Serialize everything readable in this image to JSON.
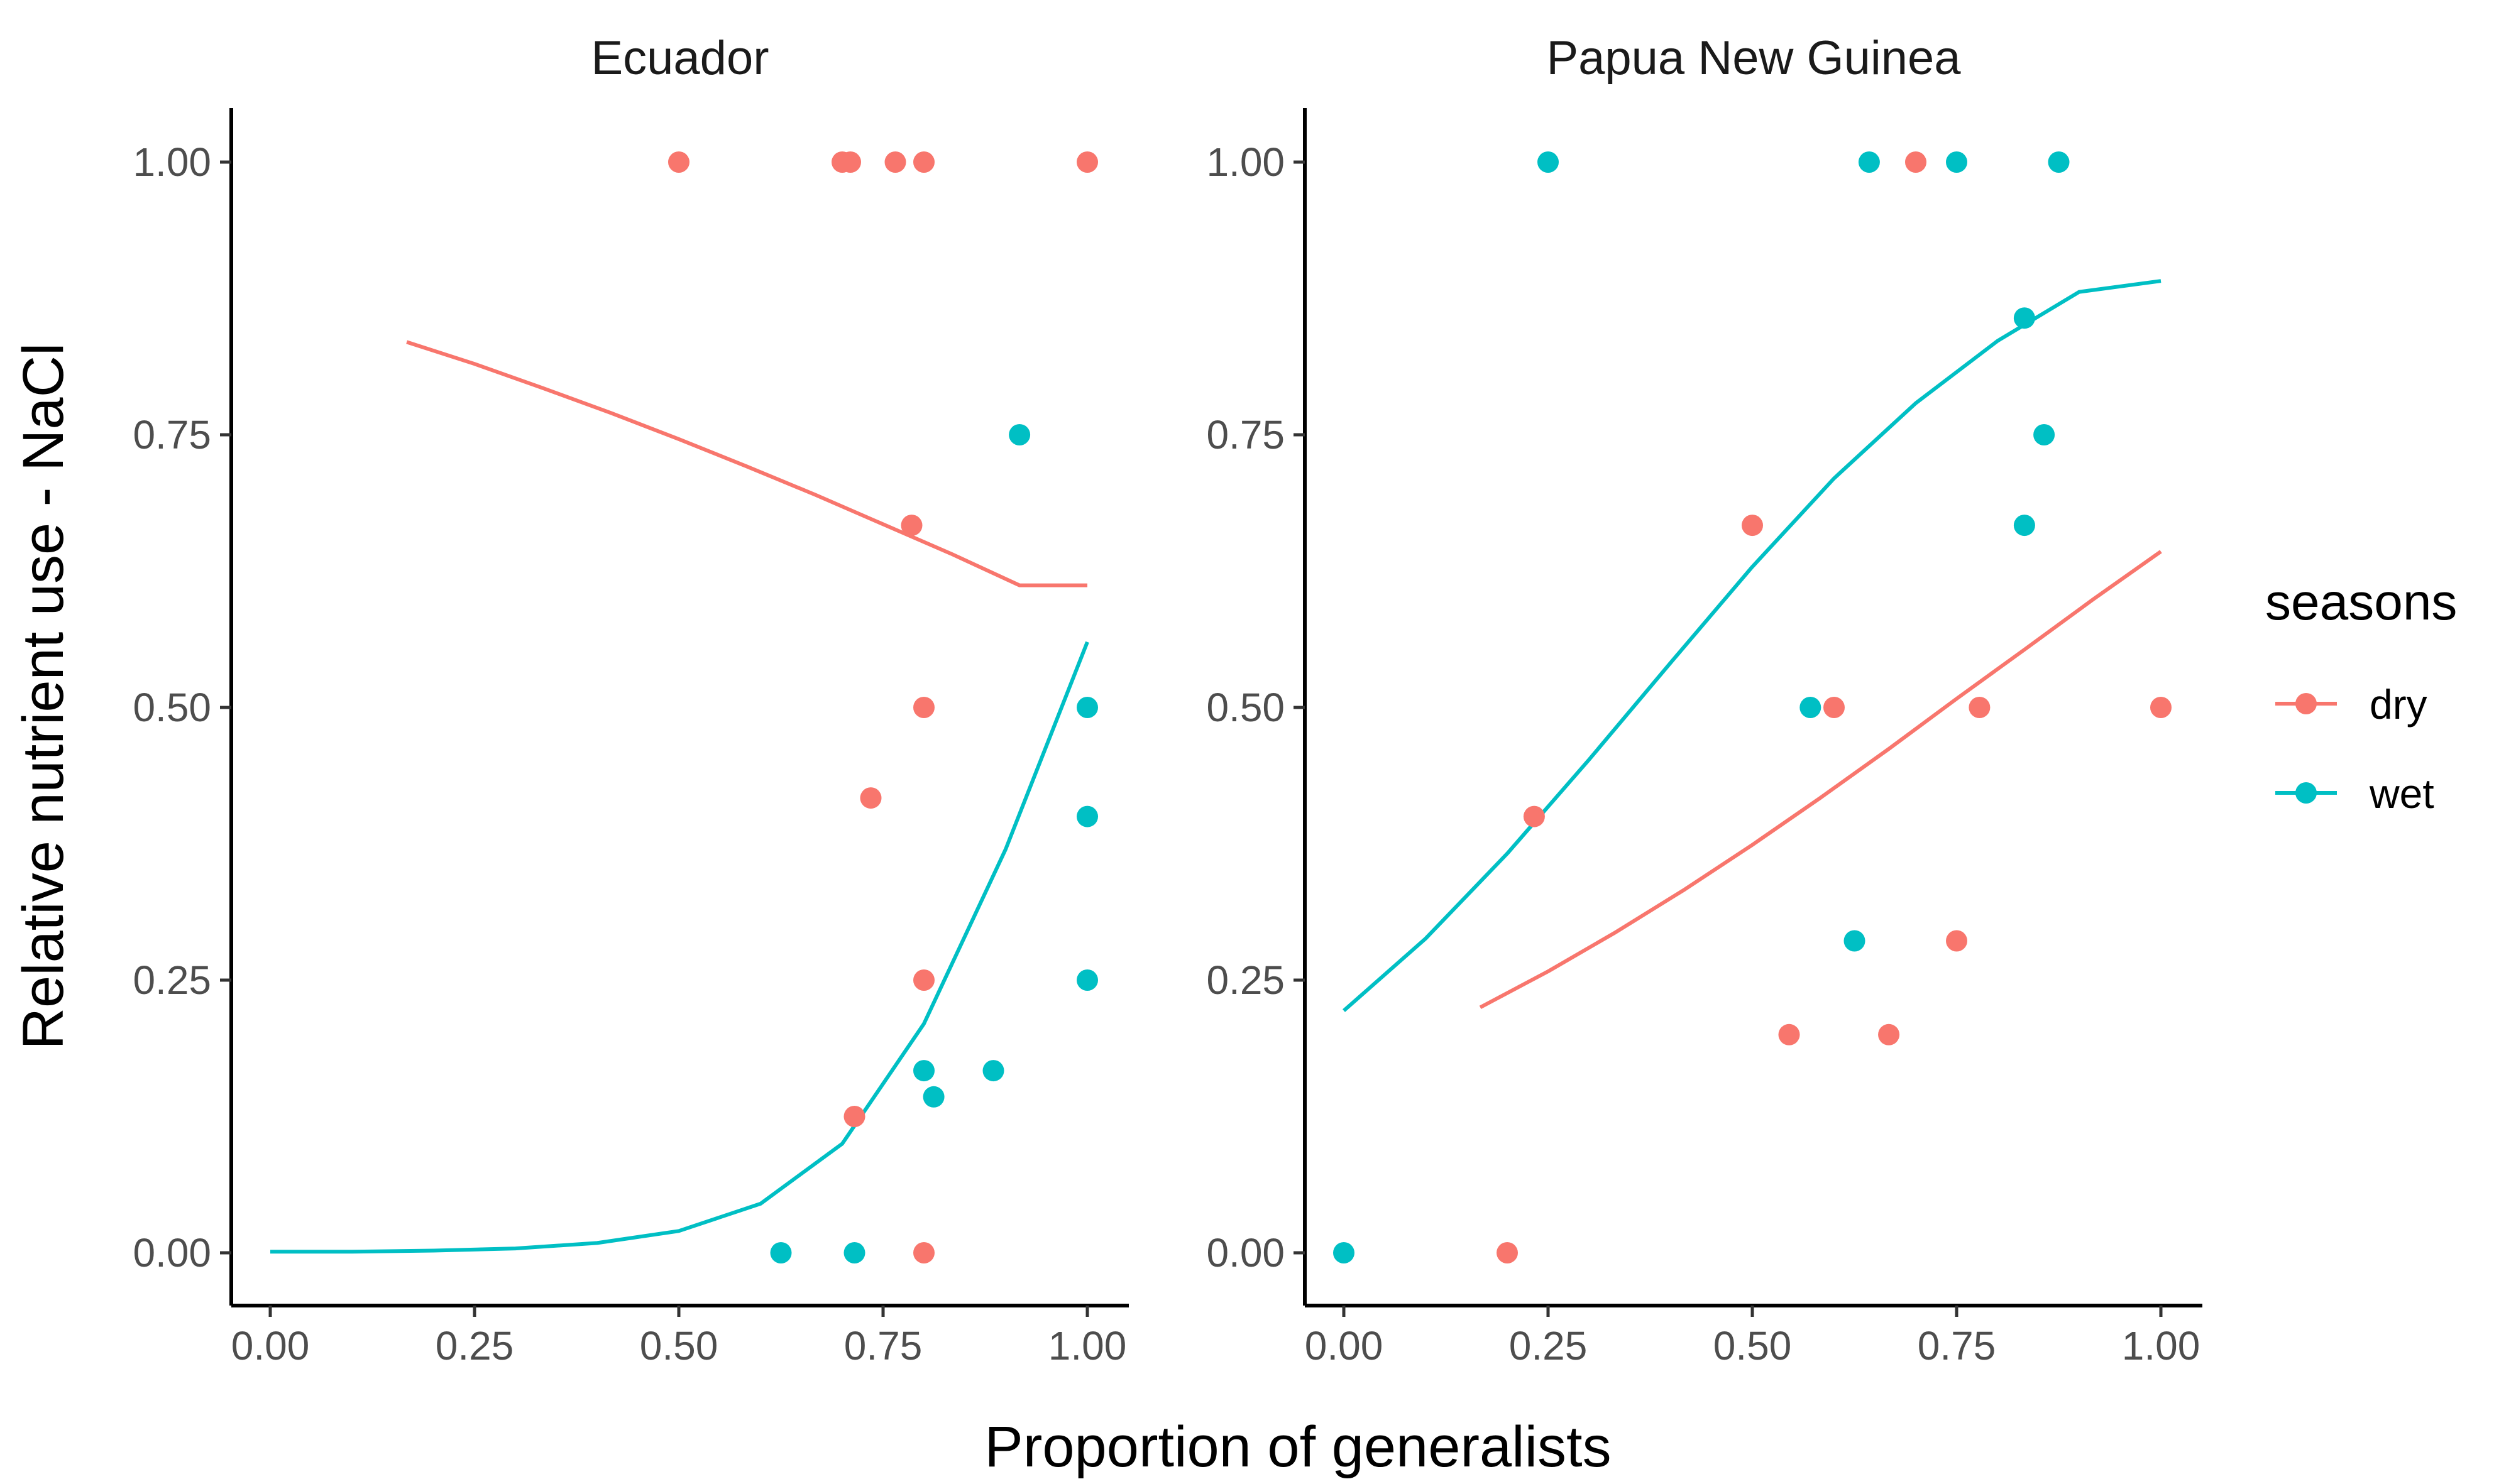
{
  "chart_data": {
    "type": "scatter",
    "xlabel": "Proportion of generalists",
    "ylabel": "Relative nutrient use - NaCl",
    "xlim": [
      0,
      1
    ],
    "ylim": [
      0,
      1
    ],
    "x_ticks": [
      "0.00",
      "0.25",
      "0.50",
      "0.75",
      "1.00"
    ],
    "y_ticks": [
      "0.00",
      "0.25",
      "0.50",
      "0.75",
      "1.00"
    ],
    "grid": false,
    "legend": {
      "title": "seasons",
      "position": "right",
      "entries": [
        {
          "label": "dry",
          "color": "#F8766D"
        },
        {
          "label": "wet",
          "color": "#00BFC4"
        }
      ]
    },
    "panels": [
      {
        "title": "Ecuador",
        "series": [
          {
            "name": "dry",
            "color": "#F8766D",
            "points": [
              [
                0.5,
                1.0
              ],
              [
                0.7,
                1.0
              ],
              [
                0.71,
                1.0
              ],
              [
                0.765,
                1.0
              ],
              [
                0.8,
                1.0
              ],
              [
                1.0,
                1.0
              ],
              [
                0.785,
                0.667
              ],
              [
                0.8,
                0.5
              ],
              [
                0.735,
                0.417
              ],
              [
                0.8,
                0.25
              ],
              [
                0.715,
                0.125
              ],
              [
                0.8,
                0.0
              ]
            ],
            "fit": [
              [
                0.167,
                0.835
              ],
              [
                0.25,
                0.815
              ],
              [
                0.333,
                0.793
              ],
              [
                0.417,
                0.77
              ],
              [
                0.5,
                0.746
              ],
              [
                0.583,
                0.721
              ],
              [
                0.667,
                0.695
              ],
              [
                0.75,
                0.668
              ],
              [
                0.833,
                0.641
              ],
              [
                0.917,
                0.612
              ],
              [
                1.0,
                0.612
              ]
            ]
          },
          {
            "name": "wet",
            "color": "#00BFC4",
            "points": [
              [
                0.917,
                0.75
              ],
              [
                1.0,
                0.5
              ],
              [
                1.0,
                0.4
              ],
              [
                1.0,
                0.25
              ],
              [
                0.8,
                0.167
              ],
              [
                0.885,
                0.167
              ],
              [
                0.812,
                0.143
              ],
              [
                0.625,
                0.0
              ],
              [
                0.715,
                0.0
              ]
            ],
            "fit": [
              [
                0.0,
                0.001
              ],
              [
                0.1,
                0.001
              ],
              [
                0.2,
                0.002
              ],
              [
                0.3,
                0.004
              ],
              [
                0.4,
                0.009
              ],
              [
                0.5,
                0.02
              ],
              [
                0.6,
                0.045
              ],
              [
                0.7,
                0.1
              ],
              [
                0.8,
                0.21
              ],
              [
                0.9,
                0.37
              ],
              [
                1.0,
                0.56
              ]
            ]
          }
        ]
      },
      {
        "title": "Papua New Guinea",
        "series": [
          {
            "name": "dry",
            "color": "#F8766D",
            "points": [
              [
                0.7,
                1.0
              ],
              [
                0.5,
                0.667
              ],
              [
                0.6,
                0.5
              ],
              [
                0.778,
                0.5
              ],
              [
                1.0,
                0.5
              ],
              [
                0.233,
                0.4
              ],
              [
                0.75,
                0.286
              ],
              [
                0.545,
                0.2
              ],
              [
                0.667,
                0.2
              ],
              [
                0.2,
                0.0
              ]
            ],
            "fit": [
              [
                0.167,
                0.225
              ],
              [
                0.25,
                0.258
              ],
              [
                0.333,
                0.294
              ],
              [
                0.417,
                0.333
              ],
              [
                0.5,
                0.374
              ],
              [
                0.583,
                0.417
              ],
              [
                0.667,
                0.462
              ],
              [
                0.75,
                0.508
              ],
              [
                0.833,
                0.553
              ],
              [
                0.917,
                0.599
              ],
              [
                1.0,
                0.643
              ]
            ]
          },
          {
            "name": "wet",
            "color": "#00BFC4",
            "points": [
              [
                0.25,
                1.0
              ],
              [
                0.643,
                1.0
              ],
              [
                0.75,
                1.0
              ],
              [
                0.875,
                1.0
              ],
              [
                0.833,
                0.857
              ],
              [
                0.857,
                0.75
              ],
              [
                0.833,
                0.667
              ],
              [
                0.571,
                0.5
              ],
              [
                0.625,
                0.286
              ],
              [
                0.0,
                0.0
              ]
            ],
            "fit": [
              [
                0.0,
                0.222
              ],
              [
                0.1,
                0.288
              ],
              [
                0.2,
                0.366
              ],
              [
                0.3,
                0.452
              ],
              [
                0.4,
                0.541
              ],
              [
                0.5,
                0.629
              ],
              [
                0.6,
                0.71
              ],
              [
                0.7,
                0.779
              ],
              [
                0.8,
                0.836
              ],
              [
                0.9,
                0.881
              ],
              [
                1.0,
                0.891
              ]
            ]
          }
        ]
      }
    ]
  }
}
